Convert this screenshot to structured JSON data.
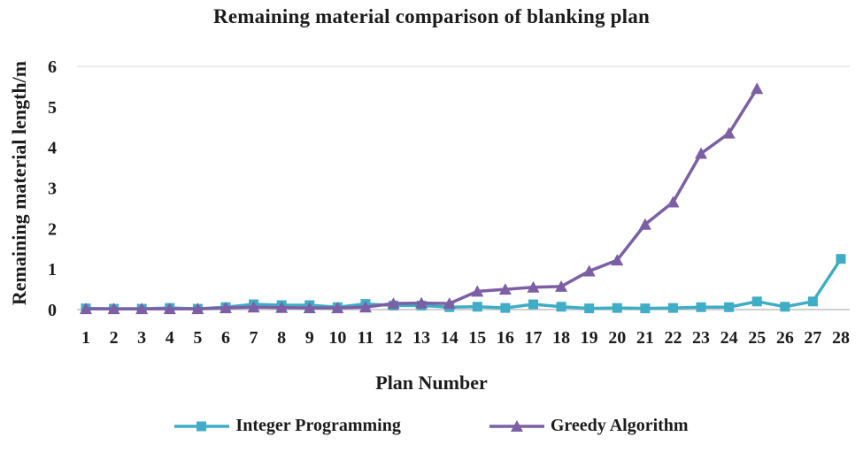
{
  "chart_data": {
    "type": "line",
    "title": "Remaining material comparison of blanking plan",
    "xlabel": "Plan Number",
    "ylabel": "Remaining material length/m",
    "x": [
      "1",
      "2",
      "3",
      "4",
      "5",
      "6",
      "7",
      "8",
      "9",
      "10",
      "11",
      "12",
      "13",
      "14",
      "15",
      "16",
      "17",
      "18",
      "19",
      "20",
      "21",
      "22",
      "23",
      "24",
      "25",
      "26",
      "27",
      "28"
    ],
    "ylim": [
      0,
      6
    ],
    "yticks": [
      0,
      1,
      2,
      3,
      4,
      5,
      6
    ],
    "grid": false,
    "legend_position": "bottom",
    "series": [
      {
        "name": "Integer Programming",
        "color": "#3fadc5",
        "marker": "square",
        "values": [
          0.03,
          0.02,
          0.02,
          0.04,
          0.02,
          0.06,
          0.13,
          0.11,
          0.11,
          0.06,
          0.14,
          0.1,
          0.1,
          0.06,
          0.07,
          0.04,
          0.13,
          0.07,
          0.03,
          0.04,
          0.03,
          0.04,
          0.06,
          0.06,
          0.2,
          0.07,
          0.2,
          1.25
        ]
      },
      {
        "name": "Greedy Algorithm",
        "color": "#7c5fa5",
        "marker": "triangle",
        "values": [
          0.02,
          0.02,
          0.02,
          0.02,
          0.02,
          0.04,
          0.06,
          0.05,
          0.04,
          0.04,
          0.06,
          0.15,
          0.16,
          0.15,
          0.45,
          0.5,
          0.55,
          0.57,
          0.95,
          1.22,
          2.1,
          2.65,
          3.85,
          4.35,
          5.45
        ]
      }
    ]
  }
}
